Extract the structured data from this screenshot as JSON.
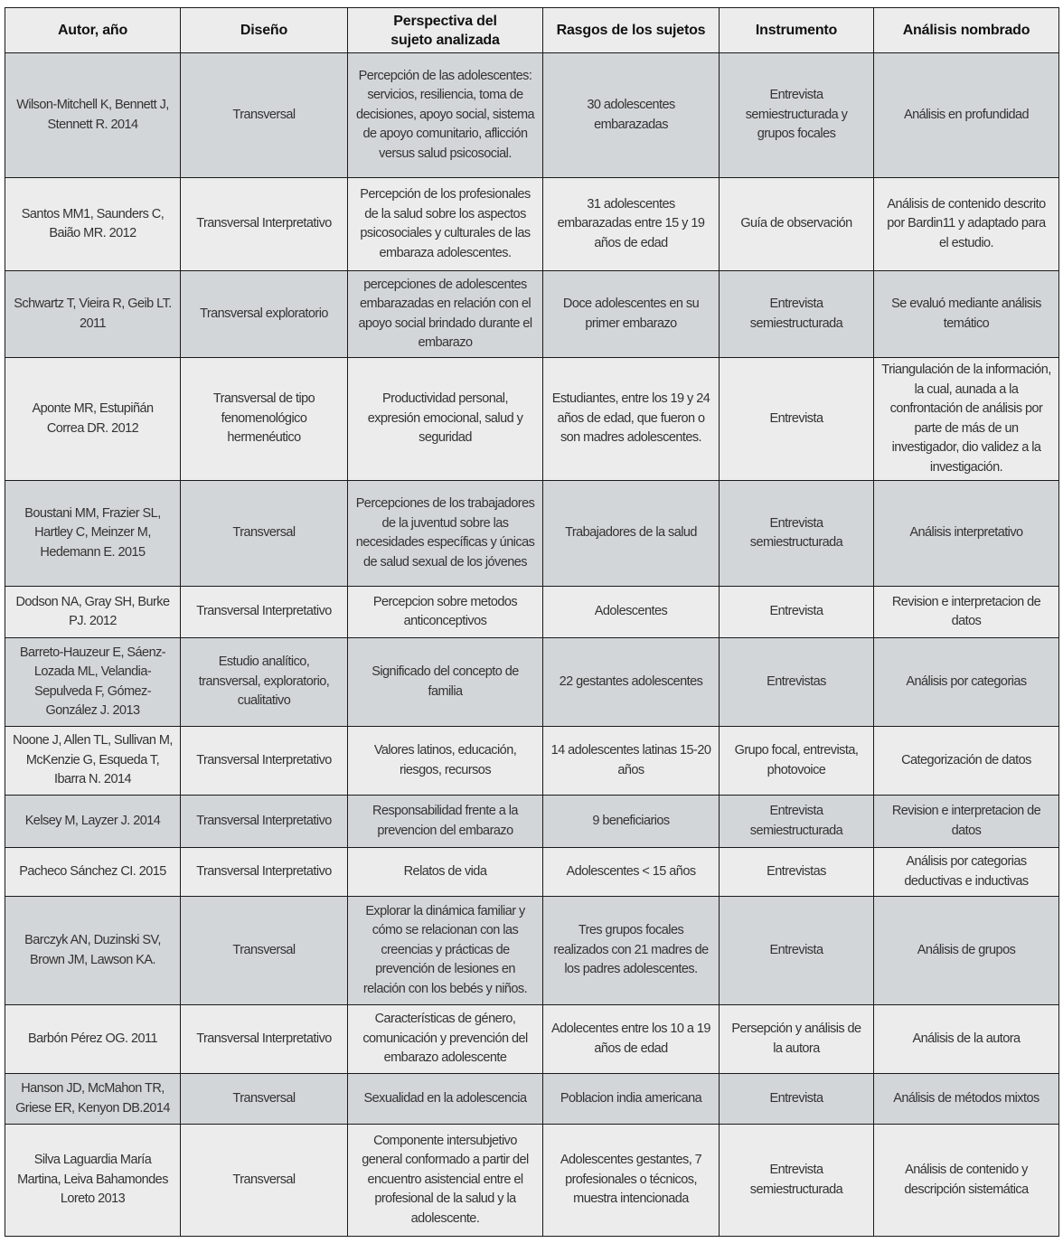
{
  "headers": [
    "Autor, año",
    "Diseño",
    "Perspectiva del sujeto analizada",
    "Rasgos de los sujetos",
    "Instrumento",
    "Análisis nombrado"
  ],
  "rows": [
    [
      "Wilson-Mitchell K, Bennett J, Stennett R. 2014",
      "Transversal",
      "Percepción de las adolescentes: servicios, resiliencia, toma de decisiones, apoyo social, sistema de apoyo comunitario, aflicción versus salud psicosocial.",
      "30 adolescentes embarazadas",
      "Entrevista semiestructurada y grupos focales",
      "Análisis en profundidad"
    ],
    [
      "Santos MM1, Saunders C, Baião MR. 2012",
      "Transversal Interpretativo",
      "Percepción de los profesionales de la salud sobre los aspectos psicosociales y culturales de las embaraza adolescentes.",
      "31 adolescentes embarazadas entre 15 y 19 años de edad",
      "Guía de observación",
      "Análisis de contenido descrito por Bardin11 y adaptado para el estudio."
    ],
    [
      "Schwartz T, Vieira R, Geib LT. 2011",
      "Transversal exploratorio",
      "percepciones de adolescentes embarazadas en relación con el apoyo social brindado durante el embarazo",
      "Doce adolescentes en su primer embarazo",
      "Entrevista semiestructurada",
      "Se evaluó mediante análisis temático"
    ],
    [
      "Aponte MR, Estupiñán Correa DR. 2012",
      "Transversal de tipo fenomenológico hermenéutico",
      "Productividad personal, expresión emocional, salud y seguridad",
      "Estudiantes, entre los 19 y 24 años de edad, que fueron o son madres adolescentes.",
      "Entrevista",
      "Triangulación de la información, la cual, aunada a la confrontación de análisis por parte de más de un investigador, dio validez a la investigación."
    ],
    [
      "Boustani MM, Frazier SL, Hartley C, Meinzer M, Hedemann E. 2015",
      "Transversal",
      "Percepciones de los trabajadores de la juventud sobre las necesidades específicas y únicas de salud sexual de los jóvenes",
      "Trabajadores de la salud",
      "Entrevista semiestructurada",
      "Análisis interpretativo"
    ],
    [
      "Dodson NA, Gray SH, Burke PJ. 2012",
      "Transversal Interpretativo",
      "Percepcion sobre metodos anticonceptivos",
      "Adolescentes",
      "Entrevista",
      "Revision e interpretacion de datos"
    ],
    [
      "Barreto-Hauzeur E, Sáenz-Lozada ML, Velandia-Sepulveda F, Gómez-González J. 2013",
      "Estudio analítico, transversal, exploratorio, cualitativo",
      "Significado del concepto de familia",
      "22 gestantes adolescentes",
      "Entrevistas",
      "Análisis por categorias"
    ],
    [
      "Noone J, Allen TL, Sullivan M, McKenzie G, Esqueda T, Ibarra N. 2014",
      "Transversal Interpretativo",
      "Valores latinos, educación, riesgos, recursos",
      "14 adolescentes latinas 15-20 años",
      "Grupo focal, entrevista, photovoice",
      "Categorización de datos"
    ],
    [
      "Kelsey M, Layzer J. 2014",
      "Transversal Interpretativo",
      "Responsabilidad frente a la prevencion del embarazo",
      "9 beneficiarios",
      "Entrevista semiestructurada",
      "Revision e interpretacion de datos"
    ],
    [
      "Pacheco Sánchez CI. 2015",
      "Transversal Interpretativo",
      "Relatos de vida",
      "Adolescentes < 15 años",
      "Entrevistas",
      "Análisis por categorias deductivas e inductivas"
    ],
    [
      "Barczyk AN, Duzinski SV, Brown JM, Lawson KA.",
      "Transversal",
      "Explorar la dinámica familiar y cómo se relacionan con las creencias y prácticas de prevención de lesiones en relación con los bebés y niños.",
      "Tres grupos focales realizados con 21 madres de los padres adolescentes.",
      "Entrevista",
      "Análisis de grupos"
    ],
    [
      "Barbón Pérez OG. 2011",
      "Transversal Interpretativo",
      "Características de género, comunicación y prevención del embarazo adolescente",
      "Adolecentes entre los 10 a 19 años de edad",
      "Persepción y análisis de la autora",
      "Análisis de la autora"
    ],
    [
      "Hanson JD, McMahon TR, Griese ER, Kenyon DB.2014",
      "Transversal",
      "Sexualidad en la adolescencia",
      "Poblacion india americana",
      "Entrevista",
      "Análisis de métodos mixtos"
    ],
    [
      "Silva Laguardia María Martina, Leiva Bahamondes Loreto 2013",
      "Transversal",
      "Componente intersubjetivo general conformado a partir del encuentro asistencial entre el profesional de la salud y la adolescente.",
      "Adolescentes gestantes, 7 profesionales o técnicos, muestra intencionada",
      "Entrevista semiestructurada",
      "Análisis de contenido y descripción sistemática"
    ]
  ]
}
